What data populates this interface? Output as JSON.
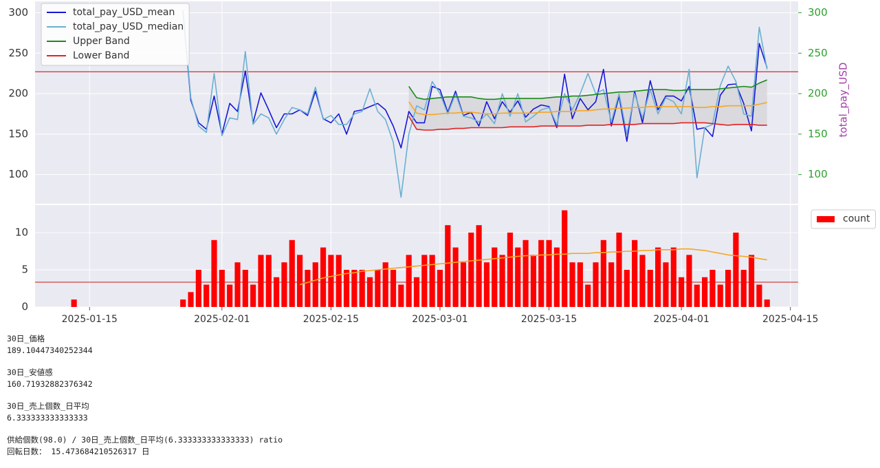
{
  "chart_data": [
    {
      "type": "line",
      "x": [
        "2025-01-27",
        "2025-01-28",
        "2025-01-29",
        "2025-01-30",
        "2025-01-31",
        "2025-02-01",
        "2025-02-02",
        "2025-02-03",
        "2025-02-04",
        "2025-02-05",
        "2025-02-06",
        "2025-02-07",
        "2025-02-08",
        "2025-02-09",
        "2025-02-10",
        "2025-02-11",
        "2025-02-12",
        "2025-02-13",
        "2025-02-14",
        "2025-02-15",
        "2025-02-16",
        "2025-02-17",
        "2025-02-18",
        "2025-02-19",
        "2025-02-20",
        "2025-02-21",
        "2025-02-22",
        "2025-02-23",
        "2025-02-24",
        "2025-02-25",
        "2025-02-26",
        "2025-02-27",
        "2025-02-28",
        "2025-03-01",
        "2025-03-02",
        "2025-03-03",
        "2025-03-04",
        "2025-03-05",
        "2025-03-06",
        "2025-03-07",
        "2025-03-08",
        "2025-03-09",
        "2025-03-10",
        "2025-03-11",
        "2025-03-12",
        "2025-03-13",
        "2025-03-14",
        "2025-03-15",
        "2025-03-16",
        "2025-03-17",
        "2025-03-18",
        "2025-03-19",
        "2025-03-20",
        "2025-03-21",
        "2025-03-22",
        "2025-03-23",
        "2025-03-24",
        "2025-03-25",
        "2025-03-26",
        "2025-03-27",
        "2025-03-28",
        "2025-03-29",
        "2025-03-30",
        "2025-03-31",
        "2025-04-01",
        "2025-04-02",
        "2025-04-03",
        "2025-04-04",
        "2025-04-05",
        "2025-04-06",
        "2025-04-07",
        "2025-04-08",
        "2025-04-09",
        "2025-04-10",
        "2025-04-11",
        "2025-04-12"
      ],
      "series": [
        {
          "name": "total_pay_USD_mean",
          "color": "#1616d8",
          "values": [
            302,
            192,
            164,
            156,
            197,
            150,
            188,
            178,
            228,
            164,
            201,
            180,
            158,
            175,
            175,
            180,
            173,
            203,
            169,
            164,
            175,
            150,
            178,
            180,
            184,
            188,
            180,
            160,
            133,
            178,
            164,
            164,
            209,
            205,
            177,
            203,
            173,
            177,
            160,
            190,
            169,
            190,
            177,
            191,
            171,
            181,
            186,
            184,
            158,
            224,
            169,
            194,
            180,
            190,
            230,
            160,
            197,
            141,
            203,
            164,
            216,
            180,
            197,
            197,
            191,
            209,
            156,
            158,
            147,
            198,
            211,
            212,
            188,
            154,
            262,
            232
          ]
        },
        {
          "name": "total_pay_USD_median",
          "color": "#6ab0d0",
          "values": [
            303,
            195,
            160,
            152,
            225,
            148,
            170,
            168,
            252,
            162,
            175,
            170,
            150,
            168,
            183,
            180,
            175,
            208,
            168,
            173,
            162,
            162,
            175,
            178,
            206,
            178,
            168,
            140,
            72,
            150,
            185,
            180,
            215,
            200,
            175,
            200,
            172,
            170,
            165,
            175,
            163,
            200,
            172,
            200,
            165,
            172,
            180,
            183,
            162,
            200,
            180,
            200,
            225,
            200,
            205,
            165,
            200,
            150,
            200,
            170,
            205,
            175,
            195,
            190,
            175,
            230,
            96,
            158,
            162,
            210,
            234,
            215,
            175,
            172,
            282,
            230
          ]
        },
        {
          "name": "Upper Band",
          "color": "#1a8a1a",
          "values": [
            null,
            null,
            null,
            null,
            null,
            null,
            null,
            null,
            null,
            null,
            null,
            null,
            null,
            null,
            null,
            null,
            null,
            null,
            null,
            null,
            null,
            null,
            null,
            null,
            null,
            null,
            null,
            null,
            null,
            209,
            195,
            193,
            194,
            195,
            196,
            196,
            196,
            196,
            194,
            193,
            193,
            194,
            194,
            194,
            194,
            194,
            194,
            195,
            196,
            196,
            197,
            197,
            198,
            199,
            200,
            201,
            202,
            202,
            203,
            204,
            205,
            205,
            205,
            204,
            204,
            205,
            205,
            205,
            205,
            206,
            207,
            208,
            209,
            208,
            213,
            217
          ]
        },
        {
          "name": "Lower Band",
          "color": "#e32020",
          "values": [
            null,
            null,
            null,
            null,
            null,
            null,
            null,
            null,
            null,
            null,
            null,
            null,
            null,
            null,
            null,
            null,
            null,
            null,
            null,
            null,
            null,
            null,
            null,
            null,
            null,
            null,
            null,
            null,
            null,
            172,
            156,
            155,
            155,
            156,
            156,
            157,
            157,
            158,
            158,
            158,
            158,
            158,
            159,
            159,
            159,
            159,
            160,
            160,
            160,
            160,
            160,
            160,
            161,
            161,
            161,
            162,
            162,
            162,
            162,
            163,
            163,
            163,
            163,
            163,
            164,
            164,
            164,
            164,
            163,
            162,
            161,
            162,
            162,
            162,
            161,
            161
          ]
        },
        {
          "color": "#f5a623",
          "values": [
            null,
            null,
            null,
            null,
            null,
            null,
            null,
            null,
            null,
            null,
            null,
            null,
            null,
            null,
            null,
            null,
            null,
            null,
            null,
            null,
            null,
            null,
            null,
            null,
            null,
            null,
            null,
            null,
            null,
            190,
            176,
            174,
            174,
            175,
            176,
            176,
            177,
            177,
            176,
            175,
            175,
            176,
            176,
            176,
            176,
            176,
            177,
            177,
            178,
            178,
            178,
            179,
            179,
            180,
            181,
            181,
            182,
            182,
            183,
            183,
            184,
            184,
            184,
            184,
            184,
            184,
            183,
            183,
            184,
            184,
            185,
            185,
            185,
            185,
            187,
            189
          ]
        }
      ],
      "fill_between": {
        "series": [
          2,
          3
        ],
        "color": "#d4d4d8"
      },
      "hlines": [
        {
          "value": 227,
          "color": "#d04040"
        }
      ],
      "xlim": [
        "2025-01-08",
        "2025-04-16"
      ],
      "ylim": [
        64,
        314
      ],
      "yticks": [
        100,
        150,
        200,
        250,
        300
      ],
      "y2lim": [
        64,
        314
      ],
      "y2ticks": [
        100,
        150,
        200,
        250,
        300
      ],
      "y2tick_color": "#2ca02c",
      "y2label": "total_pay_USD",
      "y2label_color": "#a040a8",
      "grid": true,
      "legend": "upper left"
    },
    {
      "type": "bar",
      "x": [
        "2025-01-13",
        "2025-01-27",
        "2025-01-28",
        "2025-01-29",
        "2025-01-30",
        "2025-01-31",
        "2025-02-01",
        "2025-02-02",
        "2025-02-03",
        "2025-02-04",
        "2025-02-05",
        "2025-02-06",
        "2025-02-07",
        "2025-02-08",
        "2025-02-09",
        "2025-02-10",
        "2025-02-11",
        "2025-02-12",
        "2025-02-13",
        "2025-02-14",
        "2025-02-15",
        "2025-02-16",
        "2025-02-17",
        "2025-02-18",
        "2025-02-19",
        "2025-02-20",
        "2025-02-21",
        "2025-02-22",
        "2025-02-23",
        "2025-02-24",
        "2025-02-25",
        "2025-02-26",
        "2025-02-27",
        "2025-02-28",
        "2025-03-01",
        "2025-03-02",
        "2025-03-03",
        "2025-03-04",
        "2025-03-05",
        "2025-03-06",
        "2025-03-07",
        "2025-03-08",
        "2025-03-09",
        "2025-03-10",
        "2025-03-11",
        "2025-03-12",
        "2025-03-13",
        "2025-03-14",
        "2025-03-15",
        "2025-03-16",
        "2025-03-17",
        "2025-03-18",
        "2025-03-19",
        "2025-03-20",
        "2025-03-21",
        "2025-03-22",
        "2025-03-23",
        "2025-03-24",
        "2025-03-25",
        "2025-03-26",
        "2025-03-27",
        "2025-03-28",
        "2025-03-29",
        "2025-03-30",
        "2025-03-31",
        "2025-04-01",
        "2025-04-02",
        "2025-04-03",
        "2025-04-04",
        "2025-04-05",
        "2025-04-06",
        "2025-04-07",
        "2025-04-08",
        "2025-04-09",
        "2025-04-10",
        "2025-04-11",
        "2025-04-12"
      ],
      "series": [
        {
          "name": "count",
          "type": "bar",
          "color": "#ff0000",
          "values": [
            1,
            1,
            2,
            5,
            3,
            9,
            5,
            3,
            6,
            5,
            3,
            7,
            7,
            4,
            6,
            9,
            7,
            5,
            6,
            8,
            7,
            7,
            5,
            5,
            5,
            4,
            5,
            6,
            5,
            3,
            7,
            4,
            7,
            7,
            5,
            11,
            8,
            6,
            10,
            11,
            6,
            8,
            7,
            10,
            8,
            9,
            7,
            9,
            9,
            8,
            13,
            6,
            6,
            3,
            6,
            9,
            6,
            10,
            5,
            9,
            7,
            5,
            8,
            6,
            8,
            4,
            7,
            3,
            4,
            5,
            3,
            5,
            10,
            5,
            7,
            3,
            1
          ]
        },
        {
          "type": "line",
          "color": "#f5a623",
          "values": [
            null,
            null,
            null,
            null,
            null,
            null,
            null,
            null,
            null,
            null,
            null,
            null,
            null,
            null,
            null,
            null,
            3.0,
            3.3,
            3.6,
            3.9,
            4.1,
            4.3,
            4.5,
            4.6,
            4.8,
            4.9,
            5.0,
            5.1,
            5.2,
            5.3,
            5.4,
            5.5,
            5.6,
            5.7,
            5.8,
            5.9,
            6.0,
            6.1,
            6.2,
            6.3,
            6.4,
            6.5,
            6.6,
            6.7,
            6.8,
            6.9,
            6.9,
            7.0,
            7.0,
            7.1,
            7.1,
            7.2,
            7.2,
            7.2,
            7.3,
            7.3,
            7.4,
            7.4,
            7.5,
            7.5,
            7.6,
            7.6,
            7.7,
            7.7,
            7.7,
            7.8,
            7.8,
            7.7,
            7.6,
            7.4,
            7.2,
            7.0,
            6.9,
            6.8,
            6.7,
            6.5,
            6.33
          ]
        }
      ],
      "hlines": [
        {
          "value": 3.33,
          "color": "#d04040"
        }
      ],
      "xlim": [
        "2025-01-08",
        "2025-04-16"
      ],
      "xticks": [
        "2025-01-15",
        "2025-02-01",
        "2025-02-15",
        "2025-03-01",
        "2025-03-15",
        "2025-04-01",
        "2025-04-15"
      ],
      "ylim": [
        0,
        13.7
      ],
      "yticks": [
        0,
        5,
        10
      ],
      "grid": true,
      "legend": "outside right"
    }
  ],
  "output_blocks": [
    [
      "30日_価格",
      "189.10447340252344"
    ],
    [
      "30日_安値感",
      "160.71932882376342"
    ],
    [
      "30日_売上個数_日平均",
      "6.333333333333333"
    ],
    [
      "供給個数(98.0) / 30日_売上個数_日平均(6.333333333333333) ratio",
      "回転日数： 15.473684210526317 日"
    ]
  ]
}
